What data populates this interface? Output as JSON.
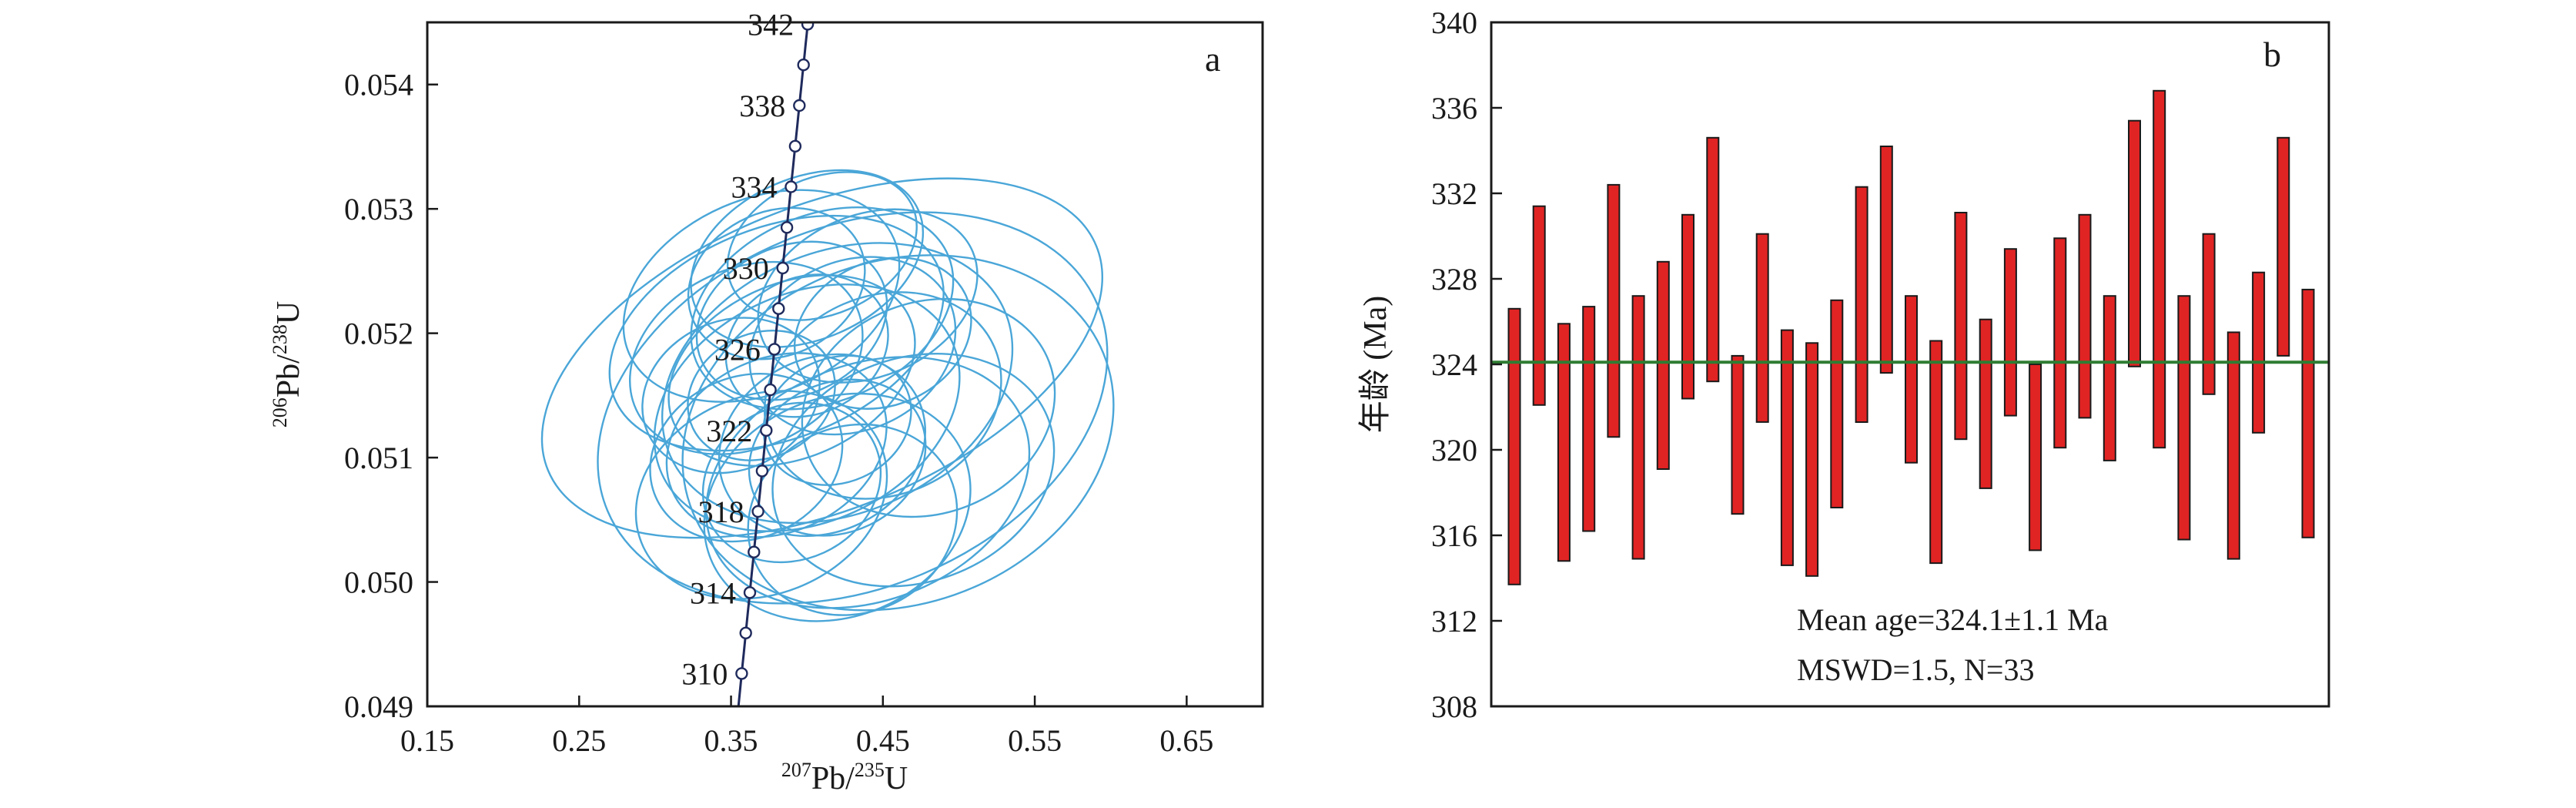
{
  "chart_data": [
    {
      "panel": "a",
      "type": "scatter",
      "subtype": "concordia-diagram",
      "panel_label": "a",
      "x_axis": {
        "label_parts": [
          {
            "text": "207",
            "sup": true
          },
          {
            "text": "Pb/",
            "sup": false
          },
          {
            "text": "235",
            "sup": true
          },
          {
            "text": "U",
            "sup": false
          }
        ],
        "range": [
          0.15,
          0.7
        ],
        "ticks": [
          "0.15",
          "0.25",
          "0.35",
          "0.45",
          "0.55",
          "0.65"
        ]
      },
      "y_axis": {
        "label_parts": [
          {
            "text": "206",
            "sup": true
          },
          {
            "text": "Pb/",
            "sup": false
          },
          {
            "text": "238",
            "sup": true
          },
          {
            "text": "U",
            "sup": false
          }
        ],
        "range": [
          0.049,
          0.0545
        ],
        "ticks": [
          "0.049",
          "0.050",
          "0.051",
          "0.052",
          "0.053",
          "0.054"
        ]
      },
      "concordia_color": "#1f2a5c",
      "ellipse_color": "#4aa6d8",
      "concordia_labels": [
        "342",
        "338",
        "334",
        "330",
        "326",
        "322",
        "318",
        "314",
        "310"
      ],
      "concordia_label_ages": [
        342,
        338,
        334,
        330,
        326,
        322,
        318,
        314,
        310
      ],
      "concordia_ages_range": [
        308,
        343
      ],
      "ellipses": [
        {
          "x": 0.41,
          "y": 0.0518,
          "rx": 0.195,
          "ry": 0.00122,
          "angle_deg": 0.7
        },
        {
          "x": 0.43,
          "y": 0.0514,
          "rx": 0.175,
          "ry": 0.00145,
          "angle_deg": 0.8
        },
        {
          "x": 0.46,
          "y": 0.0512,
          "rx": 0.145,
          "ry": 0.00138,
          "angle_deg": 0.2
        },
        {
          "x": 0.42,
          "y": 0.0516,
          "rx": 0.12,
          "ry": 0.00105,
          "angle_deg": 0.9
        },
        {
          "x": 0.38,
          "y": 0.052,
          "rx": 0.115,
          "ry": 0.00085,
          "angle_deg": 0.6
        },
        {
          "x": 0.4,
          "y": 0.0514,
          "rx": 0.105,
          "ry": 0.00092,
          "angle_deg": 1.1
        },
        {
          "x": 0.37,
          "y": 0.0523,
          "rx": 0.095,
          "ry": 0.00078,
          "angle_deg": 0.9
        },
        {
          "x": 0.44,
          "y": 0.0508,
          "rx": 0.11,
          "ry": 0.00095,
          "angle_deg": 0.5
        },
        {
          "x": 0.39,
          "y": 0.0517,
          "rx": 0.085,
          "ry": 0.0007,
          "angle_deg": 1.0
        },
        {
          "x": 0.42,
          "y": 0.0506,
          "rx": 0.09,
          "ry": 0.00088,
          "angle_deg": 0.7
        },
        {
          "x": 0.36,
          "y": 0.0518,
          "rx": 0.08,
          "ry": 0.00072,
          "angle_deg": 1.2
        },
        {
          "x": 0.41,
          "y": 0.0522,
          "rx": 0.09,
          "ry": 0.00075,
          "angle_deg": 0.8
        },
        {
          "x": 0.45,
          "y": 0.0515,
          "rx": 0.08,
          "ry": 0.0008,
          "angle_deg": 0.9
        },
        {
          "x": 0.38,
          "y": 0.0511,
          "rx": 0.075,
          "ry": 0.0007,
          "angle_deg": 1.0
        },
        {
          "x": 0.4,
          "y": 0.0526,
          "rx": 0.08,
          "ry": 0.00065,
          "angle_deg": 0.9
        },
        {
          "x": 0.43,
          "y": 0.0519,
          "rx": 0.07,
          "ry": 0.00068,
          "angle_deg": 1.1
        },
        {
          "x": 0.37,
          "y": 0.0507,
          "rx": 0.085,
          "ry": 0.0008,
          "angle_deg": 0.6
        },
        {
          "x": 0.47,
          "y": 0.0509,
          "rx": 0.095,
          "ry": 0.0009,
          "angle_deg": 0.4
        },
        {
          "x": 0.39,
          "y": 0.0521,
          "rx": 0.065,
          "ry": 0.0006,
          "angle_deg": 1.0
        },
        {
          "x": 0.41,
          "y": 0.0511,
          "rx": 0.07,
          "ry": 0.0007,
          "angle_deg": 1.2
        },
        {
          "x": 0.35,
          "y": 0.0515,
          "rx": 0.06,
          "ry": 0.0006,
          "angle_deg": 1.0
        },
        {
          "x": 0.44,
          "y": 0.0523,
          "rx": 0.075,
          "ry": 0.00065,
          "angle_deg": 0.8
        },
        {
          "x": 0.42,
          "y": 0.051,
          "rx": 0.06,
          "ry": 0.0006,
          "angle_deg": 1.3
        },
        {
          "x": 0.4,
          "y": 0.0519,
          "rx": 0.055,
          "ry": 0.00055,
          "angle_deg": 1.1
        },
        {
          "x": 0.38,
          "y": 0.0524,
          "rx": 0.06,
          "ry": 0.00058,
          "angle_deg": 1.0
        },
        {
          "x": 0.48,
          "y": 0.0514,
          "rx": 0.085,
          "ry": 0.00085,
          "angle_deg": 0.5
        },
        {
          "x": 0.36,
          "y": 0.051,
          "rx": 0.065,
          "ry": 0.00065,
          "angle_deg": 0.9
        },
        {
          "x": 0.43,
          "y": 0.0505,
          "rx": 0.07,
          "ry": 0.00075,
          "angle_deg": 0.8
        },
        {
          "x": 0.39,
          "y": 0.0508,
          "rx": 0.06,
          "ry": 0.00062,
          "angle_deg": 1.1
        },
        {
          "x": 0.45,
          "y": 0.052,
          "rx": 0.06,
          "ry": 0.00058,
          "angle_deg": 1.0
        },
        {
          "x": 0.37,
          "y": 0.0515,
          "rx": 0.05,
          "ry": 0.0005,
          "angle_deg": 1.2
        },
        {
          "x": 0.41,
          "y": 0.0527,
          "rx": 0.065,
          "ry": 0.00055,
          "angle_deg": 0.9
        },
        {
          "x": 0.42,
          "y": 0.0513,
          "rx": 0.05,
          "ry": 0.0005,
          "angle_deg": 1.0
        }
      ]
    },
    {
      "panel": "b",
      "type": "bar",
      "subtype": "weighted-mean-error-bars",
      "panel_label": "b",
      "y_axis": {
        "label": "年龄 (Ma)",
        "range": [
          308,
          340
        ],
        "ticks": [
          "308",
          "312",
          "316",
          "320",
          "324",
          "328",
          "332",
          "336",
          "340"
        ]
      },
      "mean_age": 324.1,
      "mean_line_color": "#2e7d32",
      "bar_color": "#e02424",
      "bar_edge_color": "#1a1a1a",
      "annotation_lines": [
        "Mean age=324.1±1.1 Ma",
        "MSWD=1.5, N=33"
      ],
      "bars": [
        {
          "low": 313.7,
          "high": 326.6
        },
        {
          "low": 322.1,
          "high": 331.4
        },
        {
          "low": 314.8,
          "high": 325.9
        },
        {
          "low": 316.2,
          "high": 326.7
        },
        {
          "low": 320.6,
          "high": 332.4
        },
        {
          "low": 314.9,
          "high": 327.2
        },
        {
          "low": 319.1,
          "high": 328.8
        },
        {
          "low": 322.4,
          "high": 331.0
        },
        {
          "low": 323.2,
          "high": 334.6
        },
        {
          "low": 317.0,
          "high": 324.4
        },
        {
          "low": 321.3,
          "high": 330.1
        },
        {
          "low": 314.6,
          "high": 325.6
        },
        {
          "low": 314.1,
          "high": 325.0
        },
        {
          "low": 317.3,
          "high": 327.0
        },
        {
          "low": 321.3,
          "high": 332.3
        },
        {
          "low": 323.6,
          "high": 334.2
        },
        {
          "low": 319.4,
          "high": 327.2
        },
        {
          "low": 314.7,
          "high": 325.1
        },
        {
          "low": 320.5,
          "high": 331.1
        },
        {
          "low": 318.2,
          "high": 326.1
        },
        {
          "low": 321.6,
          "high": 329.4
        },
        {
          "low": 315.3,
          "high": 324.0
        },
        {
          "low": 320.1,
          "high": 329.9
        },
        {
          "low": 321.5,
          "high": 331.0
        },
        {
          "low": 319.5,
          "high": 327.2
        },
        {
          "low": 323.9,
          "high": 335.4
        },
        {
          "low": 320.1,
          "high": 336.8
        },
        {
          "low": 315.8,
          "high": 327.2
        },
        {
          "low": 322.6,
          "high": 330.1
        },
        {
          "low": 314.9,
          "high": 325.5
        },
        {
          "low": 320.8,
          "high": 328.3
        },
        {
          "low": 324.4,
          "high": 334.6
        },
        {
          "low": 315.9,
          "high": 327.5
        }
      ]
    }
  ]
}
